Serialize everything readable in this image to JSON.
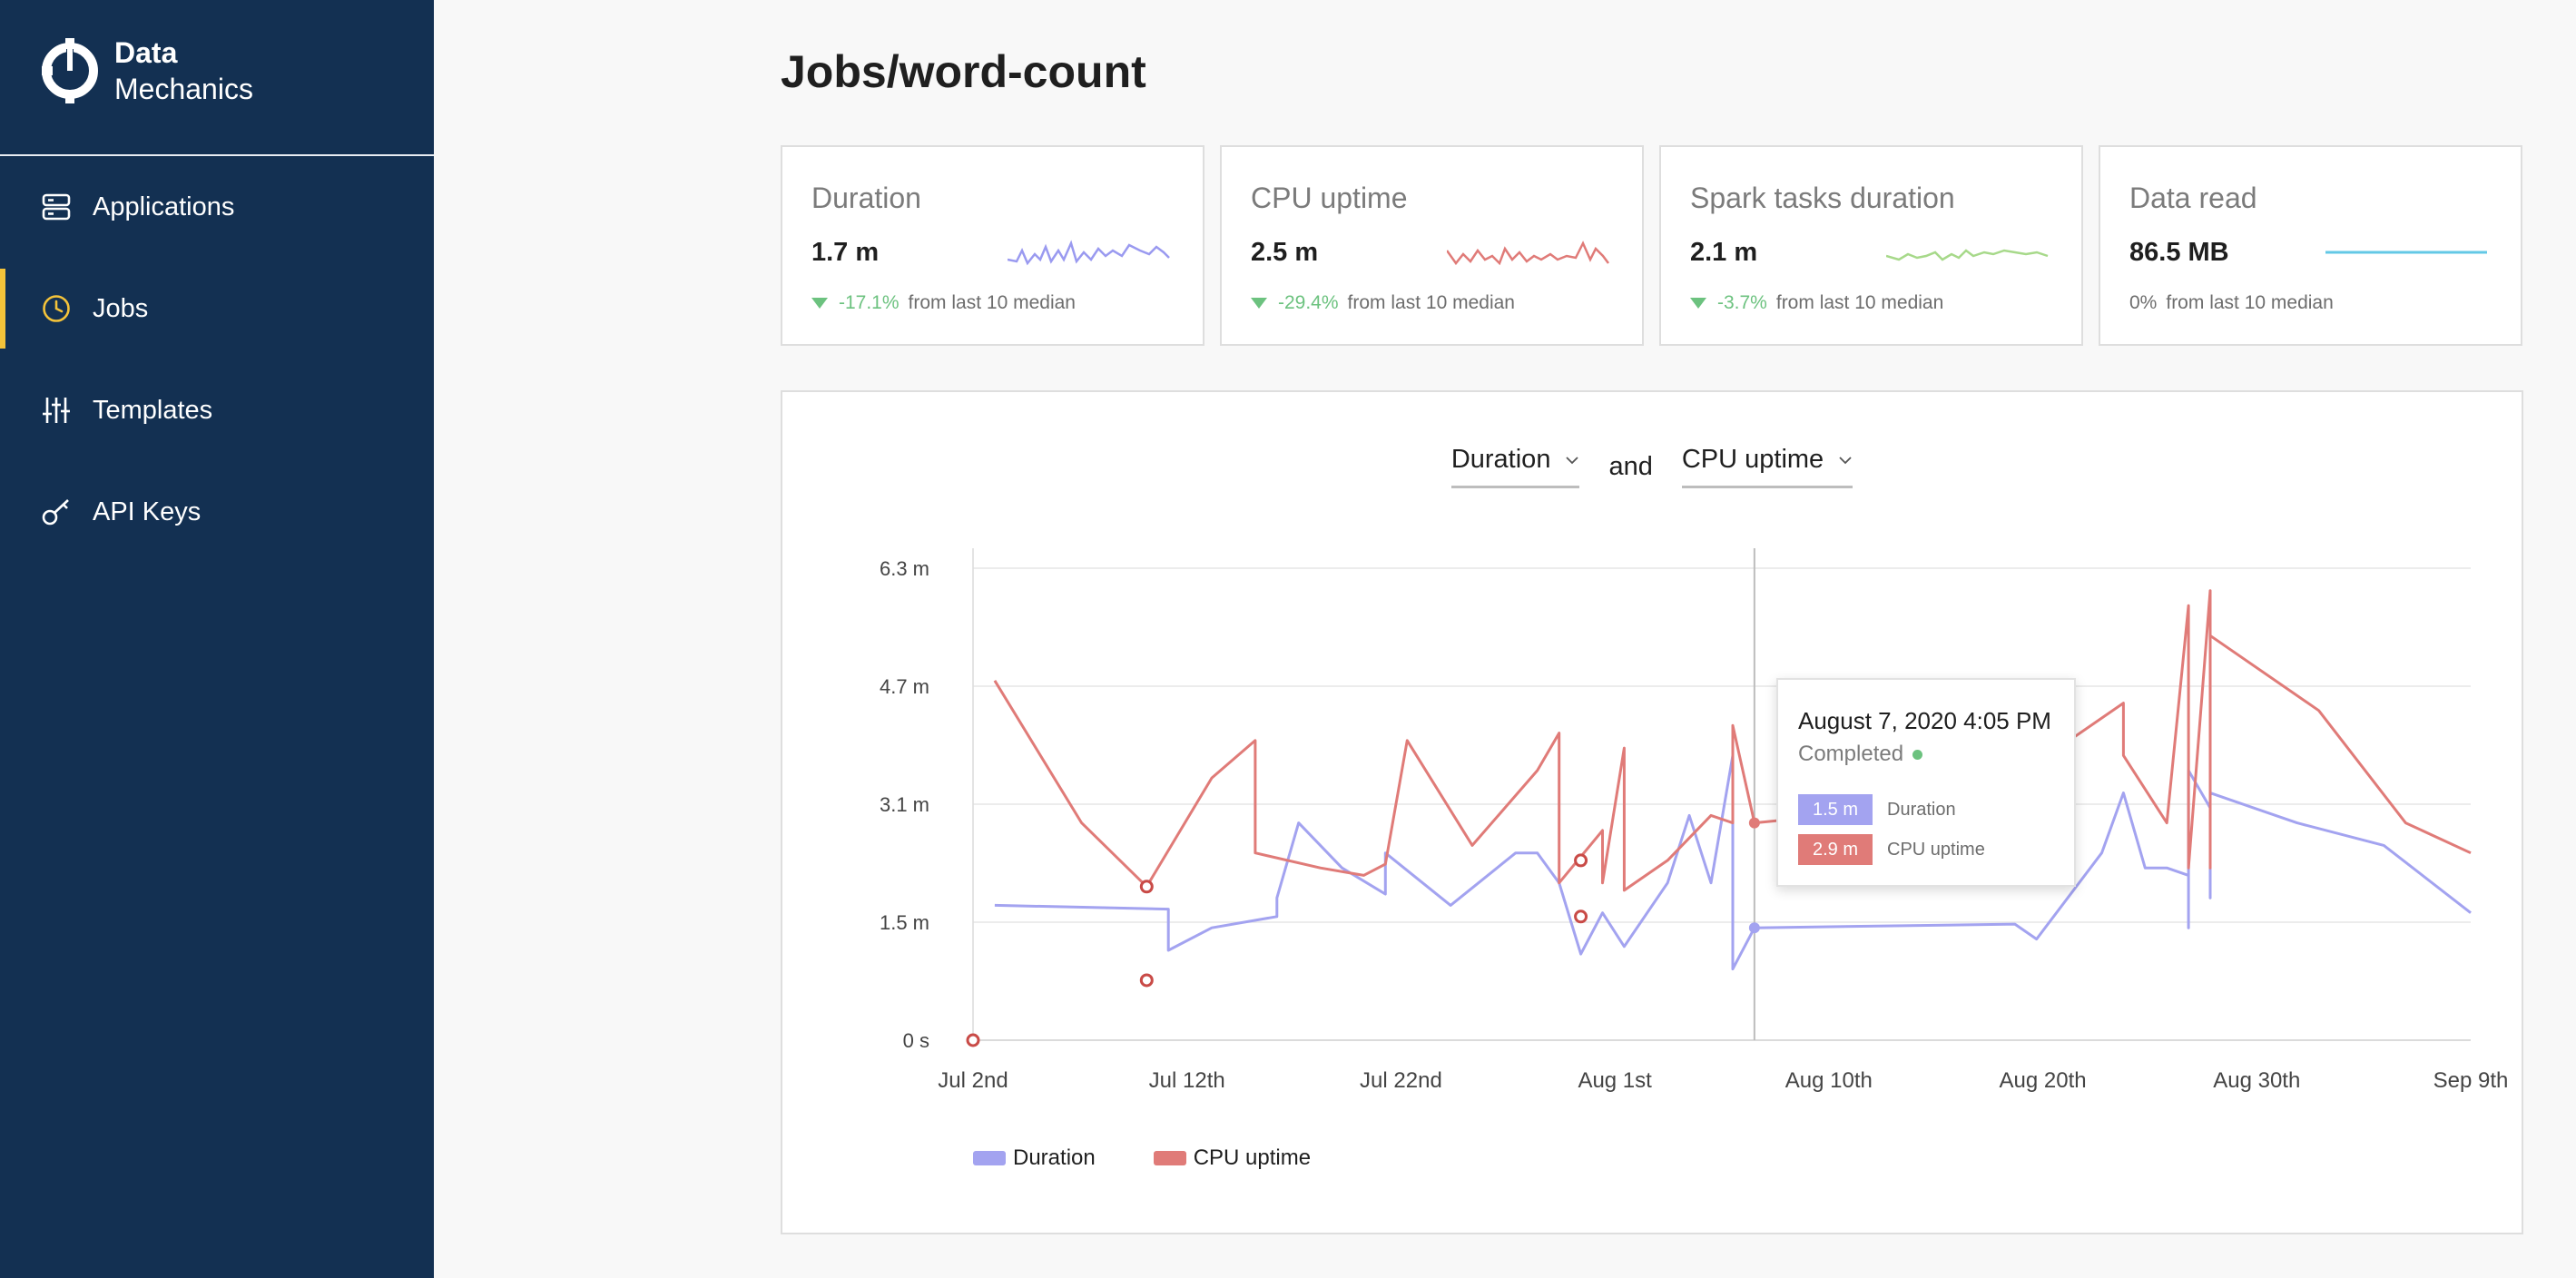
{
  "brand": {
    "line1": "Data",
    "line2": "Mechanics"
  },
  "nav": [
    {
      "label": "Applications",
      "icon": "server-icon",
      "active": false
    },
    {
      "label": "Jobs",
      "icon": "clock-icon",
      "active": true
    },
    {
      "label": "Templates",
      "icon": "sliders-icon",
      "active": false
    },
    {
      "label": "API Keys",
      "icon": "key-icon",
      "active": false
    }
  ],
  "page": {
    "title": "Jobs/word-count"
  },
  "cards": [
    {
      "title": "Duration",
      "value": "1.7 m",
      "change": "-17.1%",
      "direction": "down",
      "suffix": "from last 10 median",
      "color": "#9a9af0"
    },
    {
      "title": "CPU uptime",
      "value": "2.5 m",
      "change": "-29.4%",
      "direction": "down",
      "suffix": "from last 10 median",
      "color": "#e07b78"
    },
    {
      "title": "Spark tasks duration",
      "value": "2.1 m",
      "change": "-3.7%",
      "direction": "down",
      "suffix": "from last 10 median",
      "color": "#a7d98a"
    },
    {
      "title": "Data read",
      "value": "86.5 MB",
      "change": "0%",
      "direction": "none",
      "suffix": "from last 10 median",
      "color": "#63c8e6"
    }
  ],
  "selectors": {
    "left": "Duration",
    "and": "and",
    "right": "CPU uptime"
  },
  "tooltip": {
    "date": "August 7, 2020 4:05 PM",
    "status": "Completed",
    "rows": [
      {
        "value": "1.5 m",
        "label": "Duration",
        "color": "#a3a3f0"
      },
      {
        "value": "2.9 m",
        "label": "CPU uptime",
        "color": "#e07b78"
      }
    ]
  },
  "chart_data": {
    "type": "line",
    "y_ticks": [
      "0 s",
      "1.5 m",
      "3.1 m",
      "4.7 m",
      "6.3 m"
    ],
    "x_ticks": [
      "Jul 2nd",
      "Jul 12th",
      "Jul 22nd",
      "Aug 1st",
      "Aug 10th",
      "Aug 20th",
      "Aug 30th",
      "Sep 9th"
    ],
    "ylim": [
      0,
      6.3
    ],
    "y_unit": "minutes",
    "grid": true,
    "legend": "bottom-left",
    "series": [
      {
        "name": "Duration",
        "color": "#a3a3f0",
        "points": [
          [
            "2020-07-03",
            1.8
          ],
          [
            "2020-07-11",
            1.75
          ],
          [
            "2020-07-11",
            1.2
          ],
          [
            "2020-07-13",
            1.5
          ],
          [
            "2020-07-16",
            1.65
          ],
          [
            "2020-07-16",
            1.9
          ],
          [
            "2020-07-17",
            2.9
          ],
          [
            "2020-07-19",
            2.3
          ],
          [
            "2020-07-21",
            1.95
          ],
          [
            "2020-07-21",
            2.5
          ],
          [
            "2020-07-24",
            1.8
          ],
          [
            "2020-07-27",
            2.5
          ],
          [
            "2020-07-28",
            2.5
          ],
          [
            "2020-07-29",
            2.1
          ],
          [
            "2020-07-30",
            1.15
          ],
          [
            "2020-07-31",
            1.7
          ],
          [
            "2020-08-01",
            1.25
          ],
          [
            "2020-08-03",
            2.1
          ],
          [
            "2020-08-04",
            3.0
          ],
          [
            "2020-08-05",
            2.1
          ],
          [
            "2020-08-06",
            3.8
          ],
          [
            "2020-08-06",
            0.95
          ],
          [
            "2020-08-07",
            1.5
          ],
          [
            "2020-08-19",
            1.55
          ],
          [
            "2020-08-20",
            1.35
          ],
          [
            "2020-08-23",
            2.5
          ],
          [
            "2020-08-24",
            3.3
          ],
          [
            "2020-08-25",
            2.3
          ],
          [
            "2020-08-26",
            2.3
          ],
          [
            "2020-08-27",
            2.2
          ],
          [
            "2020-08-27",
            1.5
          ],
          [
            "2020-08-27",
            3.6
          ],
          [
            "2020-08-28",
            3.1
          ],
          [
            "2020-08-28",
            1.9
          ],
          [
            "2020-08-28",
            3.3
          ],
          [
            "2020-09-01",
            2.9
          ],
          [
            "2020-09-05",
            2.6
          ],
          [
            "2020-09-09",
            1.7
          ]
        ]
      },
      {
        "name": "CPU uptime",
        "color": "#e07b78",
        "points": [
          [
            "2020-07-03",
            4.8
          ],
          [
            "2020-07-07",
            2.9
          ],
          [
            "2020-07-10",
            2.05
          ],
          [
            "2020-07-13",
            3.5
          ],
          [
            "2020-07-15",
            4.0
          ],
          [
            "2020-07-15",
            2.5
          ],
          [
            "2020-07-18",
            2.3
          ],
          [
            "2020-07-20",
            2.2
          ],
          [
            "2020-07-21",
            2.35
          ],
          [
            "2020-07-22",
            4.0
          ],
          [
            "2020-07-25",
            2.6
          ],
          [
            "2020-07-28",
            3.6
          ],
          [
            "2020-07-29",
            4.1
          ],
          [
            "2020-07-29",
            2.1
          ],
          [
            "2020-07-31",
            2.8
          ],
          [
            "2020-07-31",
            2.1
          ],
          [
            "2020-08-01",
            3.9
          ],
          [
            "2020-08-01",
            2.0
          ],
          [
            "2020-08-03",
            2.4
          ],
          [
            "2020-08-05",
            3.0
          ],
          [
            "2020-08-06",
            2.9
          ],
          [
            "2020-08-06",
            4.2
          ],
          [
            "2020-08-07",
            2.9
          ],
          [
            "2020-08-14",
            3.1
          ],
          [
            "2020-08-21",
            3.9
          ],
          [
            "2020-08-24",
            4.5
          ],
          [
            "2020-08-24",
            3.8
          ],
          [
            "2020-08-26",
            2.9
          ],
          [
            "2020-08-27",
            5.8
          ],
          [
            "2020-08-27",
            2.3
          ],
          [
            "2020-08-28",
            6.0
          ],
          [
            "2020-08-28",
            2.3
          ],
          [
            "2020-08-28",
            5.4
          ],
          [
            "2020-09-02",
            4.4
          ],
          [
            "2020-09-06",
            2.9
          ],
          [
            "2020-09-09",
            2.5
          ]
        ]
      }
    ],
    "markers": [
      {
        "series": "CPU uptime",
        "x": "2020-07-02",
        "y": 0
      },
      {
        "series": "CPU uptime",
        "x": "2020-07-10",
        "y": 0.8
      },
      {
        "series": "CPU uptime",
        "x": "2020-07-10",
        "y": 2.05
      },
      {
        "series": "CPU uptime",
        "x": "2020-07-30",
        "y": 1.65
      },
      {
        "series": "CPU uptime",
        "x": "2020-07-30",
        "y": 2.4
      }
    ],
    "hover": {
      "x": "2020-08-07",
      "duration": 1.5,
      "cpu_uptime": 2.9
    }
  }
}
